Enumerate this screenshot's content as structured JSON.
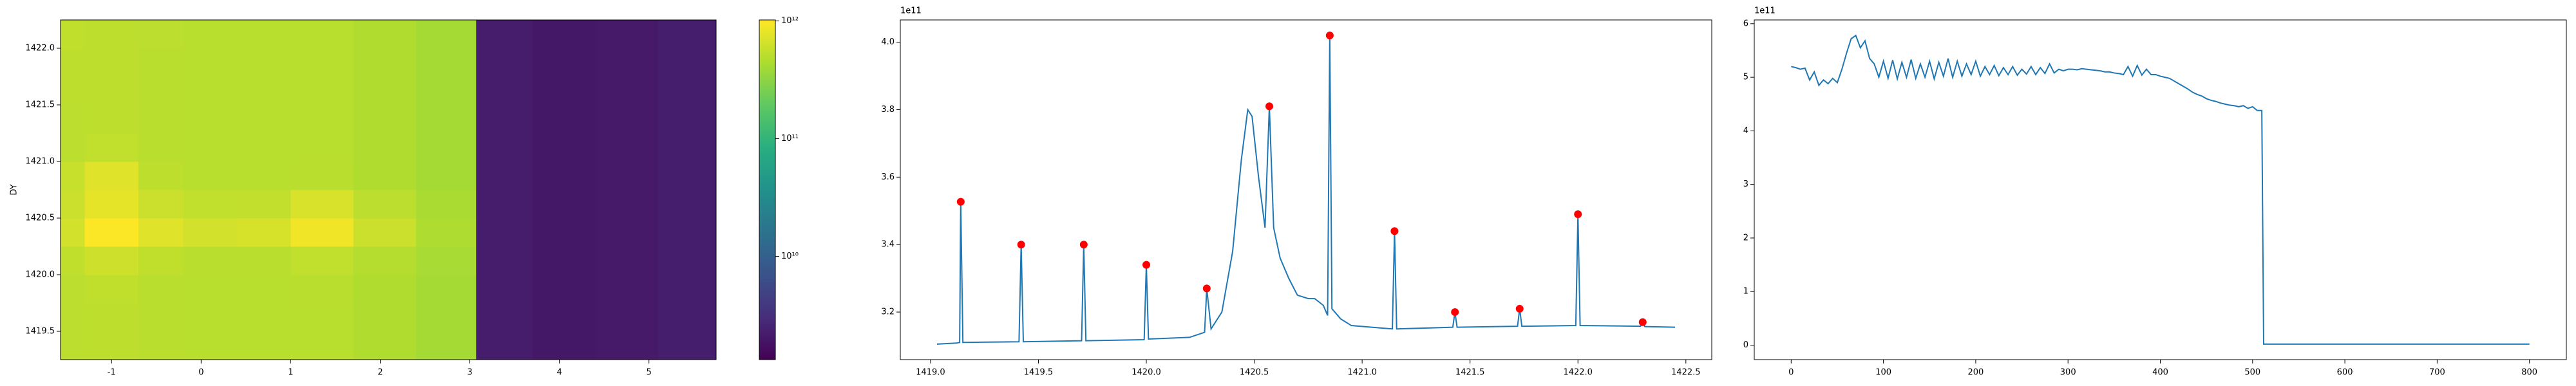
{
  "chart_data": [
    {
      "type": "heatmap",
      "ylabel": "DY",
      "x_edges": [
        -1.57,
        -1.3,
        -0.7,
        -0.2,
        0.4,
        1.0,
        1.7,
        2.4,
        3.07,
        3.7,
        4.4,
        5.1,
        5.75
      ],
      "y_edges": [
        1419.25,
        1419.5,
        1419.75,
        1420.0,
        1420.25,
        1420.5,
        1420.75,
        1421.0,
        1421.25,
        1421.5,
        1421.75,
        1422.0,
        1422.25
      ],
      "z": [
        [
          520000000000.0,
          530000000000.0,
          510000000000.0,
          500000000000.0,
          500000000000.0,
          500000000000.0,
          460000000000.0,
          410000000000.0,
          2200000000.0,
          2000000000.0,
          2100000000.0,
          2300000000.0
        ],
        [
          520000000000.0,
          530000000000.0,
          510000000000.0,
          500000000000.0,
          500000000000.0,
          500000000000.0,
          460000000000.0,
          410000000000.0,
          2200000000.0,
          2000000000.0,
          2100000000.0,
          2300000000.0
        ],
        [
          520000000000.0,
          540000000000.0,
          510000000000.0,
          500000000000.0,
          500000000000.0,
          510000000000.0,
          460000000000.0,
          410000000000.0,
          2200000000.0,
          2000000000.0,
          2100000000.0,
          2300000000.0
        ],
        [
          540000000000.0,
          620000000000.0,
          540000000000.0,
          510000000000.0,
          510000000000.0,
          550000000000.0,
          480000000000.0,
          420000000000.0,
          2200000000.0,
          2000000000.0,
          2100000000.0,
          2300000000.0
        ],
        [
          650000000000.0,
          1000000000000.0,
          750000000000.0,
          650000000000.0,
          680000000000.0,
          900000000000.0,
          600000000000.0,
          450000000000.0,
          2200000000.0,
          2000000000.0,
          2100000000.0,
          2300000000.0
        ],
        [
          600000000000.0,
          800000000000.0,
          600000000000.0,
          550000000000.0,
          560000000000.0,
          700000000000.0,
          520000000000.0,
          430000000000.0,
          2200000000.0,
          2000000000.0,
          2100000000.0,
          2300000000.0
        ],
        [
          580000000000.0,
          750000000000.0,
          530000000000.0,
          500000000000.0,
          500000000000.0,
          510000000000.0,
          460000000000.0,
          410000000000.0,
          2200000000.0,
          2000000000.0,
          2100000000.0,
          2300000000.0
        ],
        [
          520000000000.0,
          550000000000.0,
          510000000000.0,
          500000000000.0,
          500000000000.0,
          500000000000.0,
          460000000000.0,
          410000000000.0,
          2200000000.0,
          2000000000.0,
          2100000000.0,
          2300000000.0
        ],
        [
          520000000000.0,
          530000000000.0,
          510000000000.0,
          500000000000.0,
          500000000000.0,
          500000000000.0,
          460000000000.0,
          410000000000.0,
          2200000000.0,
          2000000000.0,
          2100000000.0,
          2300000000.0
        ],
        [
          530000000000.0,
          530000000000.0,
          510000000000.0,
          500000000000.0,
          500000000000.0,
          500000000000.0,
          460000000000.0,
          410000000000.0,
          2200000000.0,
          2000000000.0,
          2100000000.0,
          2300000000.0
        ],
        [
          530000000000.0,
          530000000000.0,
          510000000000.0,
          500000000000.0,
          500000000000.0,
          500000000000.0,
          460000000000.0,
          410000000000.0,
          2200000000.0,
          2000000000.0,
          2100000000.0,
          2300000000.0
        ],
        [
          540000000000.0,
          530000000000.0,
          520000000000.0,
          500000000000.0,
          500000000000.0,
          500000000000.0,
          460000000000.0,
          410000000000.0,
          2200000000.0,
          2000000000.0,
          2100000000.0,
          2300000000.0
        ]
      ],
      "xlim": [
        -1.57,
        5.75
      ],
      "ylim": [
        1419.25,
        1422.25
      ],
      "xticks": [
        -1,
        0,
        1,
        2,
        3,
        4,
        5
      ],
      "yticks": [
        1419.5,
        {
          "value": 1420,
          "label": "1420.0"
        },
        1420.5,
        {
          "value": 1421,
          "label": "1421.0"
        },
        1421.5,
        {
          "value": 1422,
          "label": "1422.0"
        }
      ],
      "colormap": "viridis",
      "zscale": "log",
      "zlim": [
        1330000000.0,
        1020000000000.0
      ],
      "zticks": [
        {
          "value": 10000000000.0,
          "label": "10¹⁰"
        },
        {
          "value": 100000000000.0,
          "label": "10¹¹"
        },
        {
          "value": 1000000000000.0,
          "label": "10¹²"
        }
      ]
    },
    {
      "type": "line",
      "y_offset_label": "1e11",
      "series": [
        {
          "type": "line",
          "color": "#1f77b4",
          "x": [
            1419.03,
            1419.12,
            1419.135,
            1419.14,
            1419.15,
            1419.41,
            1419.42,
            1419.43,
            1419.7,
            1419.71,
            1419.72,
            1419.99,
            1420.0,
            1420.01,
            1420.2,
            1420.27,
            1420.28,
            1420.3,
            1420.35,
            1420.4,
            1420.44,
            1420.47,
            1420.49,
            1420.52,
            1420.55,
            1420.57,
            1420.59,
            1420.62,
            1420.66,
            1420.7,
            1420.75,
            1420.78,
            1420.82,
            1420.84,
            1420.85,
            1420.86,
            1420.9,
            1420.95,
            1421.14,
            1421.15,
            1421.16,
            1421.42,
            1421.43,
            1421.44,
            1421.72,
            1421.73,
            1421.74,
            1421.99,
            1422.0,
            1422.01,
            1422.29,
            1422.3,
            1422.31,
            1422.45
          ],
          "values": [
            3.105,
            3.108,
            3.11,
            3.527,
            3.11,
            3.112,
            3.4,
            3.112,
            3.115,
            3.4,
            3.115,
            3.118,
            3.34,
            3.12,
            3.125,
            3.14,
            3.27,
            3.15,
            3.2,
            3.38,
            3.65,
            3.8,
            3.78,
            3.6,
            3.45,
            3.81,
            3.45,
            3.36,
            3.3,
            3.25,
            3.24,
            3.24,
            3.22,
            3.19,
            4.02,
            3.21,
            3.18,
            3.16,
            3.15,
            3.44,
            3.15,
            3.155,
            3.2,
            3.155,
            3.158,
            3.21,
            3.158,
            3.16,
            3.49,
            3.16,
            3.158,
            3.17,
            3.157,
            3.155
          ]
        },
        {
          "type": "scatter",
          "color": "#ff0000",
          "x": [
            1419.14,
            1419.42,
            1419.71,
            1420.0,
            1420.28,
            1420.57,
            1420.85,
            1421.15,
            1421.43,
            1421.73,
            1422.0,
            1422.3
          ],
          "values": [
            3.527,
            3.4,
            3.4,
            3.34,
            3.27,
            3.81,
            4.02,
            3.44,
            3.2,
            3.21,
            3.49,
            3.17
          ]
        }
      ],
      "xlim": [
        1418.86,
        1422.62
      ],
      "ylim": [
        3.059,
        4.066
      ],
      "xticks": [
        {
          "value": 1419,
          "label": "1419.0"
        },
        1419.5,
        {
          "value": 1420,
          "label": "1420.0"
        },
        1420.5,
        {
          "value": 1421,
          "label": "1421.0"
        },
        1421.5,
        {
          "value": 1422,
          "label": "1422.0"
        },
        1422.5
      ],
      "yticks": [
        3.2,
        3.4,
        3.6,
        3.8,
        {
          "value": 4,
          "label": "4.0"
        }
      ]
    },
    {
      "type": "line",
      "y_offset_label": "1e11",
      "series": [
        {
          "type": "line",
          "color": "#1f77b4",
          "x": [
            0,
            5,
            10,
            15,
            20,
            25,
            30,
            35,
            40,
            45,
            50,
            55,
            60,
            65,
            70,
            75,
            80,
            85,
            90,
            95,
            100,
            105,
            110,
            115,
            120,
            125,
            130,
            135,
            140,
            145,
            150,
            155,
            160,
            165,
            170,
            175,
            180,
            185,
            190,
            195,
            200,
            205,
            210,
            215,
            220,
            225,
            230,
            235,
            240,
            245,
            250,
            255,
            260,
            265,
            270,
            275,
            280,
            285,
            290,
            295,
            300,
            305,
            310,
            315,
            320,
            325,
            330,
            335,
            340,
            345,
            350,
            355,
            360,
            365,
            370,
            375,
            380,
            385,
            390,
            395,
            400,
            405,
            410,
            415,
            420,
            425,
            430,
            435,
            440,
            445,
            450,
            455,
            460,
            465,
            470,
            475,
            480,
            485,
            490,
            495,
            500,
            505,
            510,
            512,
            800
          ],
          "values": [
            5.2,
            5.18,
            5.15,
            5.17,
            4.95,
            5.1,
            4.85,
            4.95,
            4.88,
            4.98,
            4.9,
            5.15,
            5.45,
            5.72,
            5.78,
            5.55,
            5.68,
            5.35,
            5.25,
            5.0,
            5.3,
            4.98,
            5.32,
            4.97,
            5.28,
            5.0,
            5.33,
            4.98,
            5.25,
            5.0,
            5.3,
            4.97,
            5.28,
            5.02,
            5.35,
            5.0,
            5.3,
            5.02,
            5.25,
            5.05,
            5.3,
            5.02,
            5.2,
            5.05,
            5.22,
            5.03,
            5.18,
            5.05,
            5.2,
            5.04,
            5.15,
            5.06,
            5.2,
            5.05,
            5.18,
            5.07,
            5.25,
            5.08,
            5.15,
            5.12,
            5.15,
            5.15,
            5.14,
            5.16,
            5.15,
            5.14,
            5.13,
            5.12,
            5.1,
            5.1,
            5.08,
            5.07,
            5.05,
            5.2,
            5.02,
            5.22,
            5.04,
            5.15,
            5.05,
            5.05,
            5.02,
            5.0,
            4.98,
            4.93,
            4.88,
            4.83,
            4.78,
            4.72,
            4.68,
            4.65,
            4.6,
            4.57,
            4.55,
            4.52,
            4.5,
            4.48,
            4.47,
            4.45,
            4.47,
            4.42,
            4.45,
            4.38,
            4.38,
            0.02,
            0.02
          ]
        }
      ],
      "xlim": [
        -40,
        840
      ],
      "ylim": [
        -0.27,
        6.07
      ],
      "xticks": [
        0,
        100,
        200,
        300,
        400,
        500,
        600,
        700,
        800
      ],
      "yticks": [
        0,
        1,
        2,
        3,
        4,
        5,
        6
      ]
    }
  ]
}
